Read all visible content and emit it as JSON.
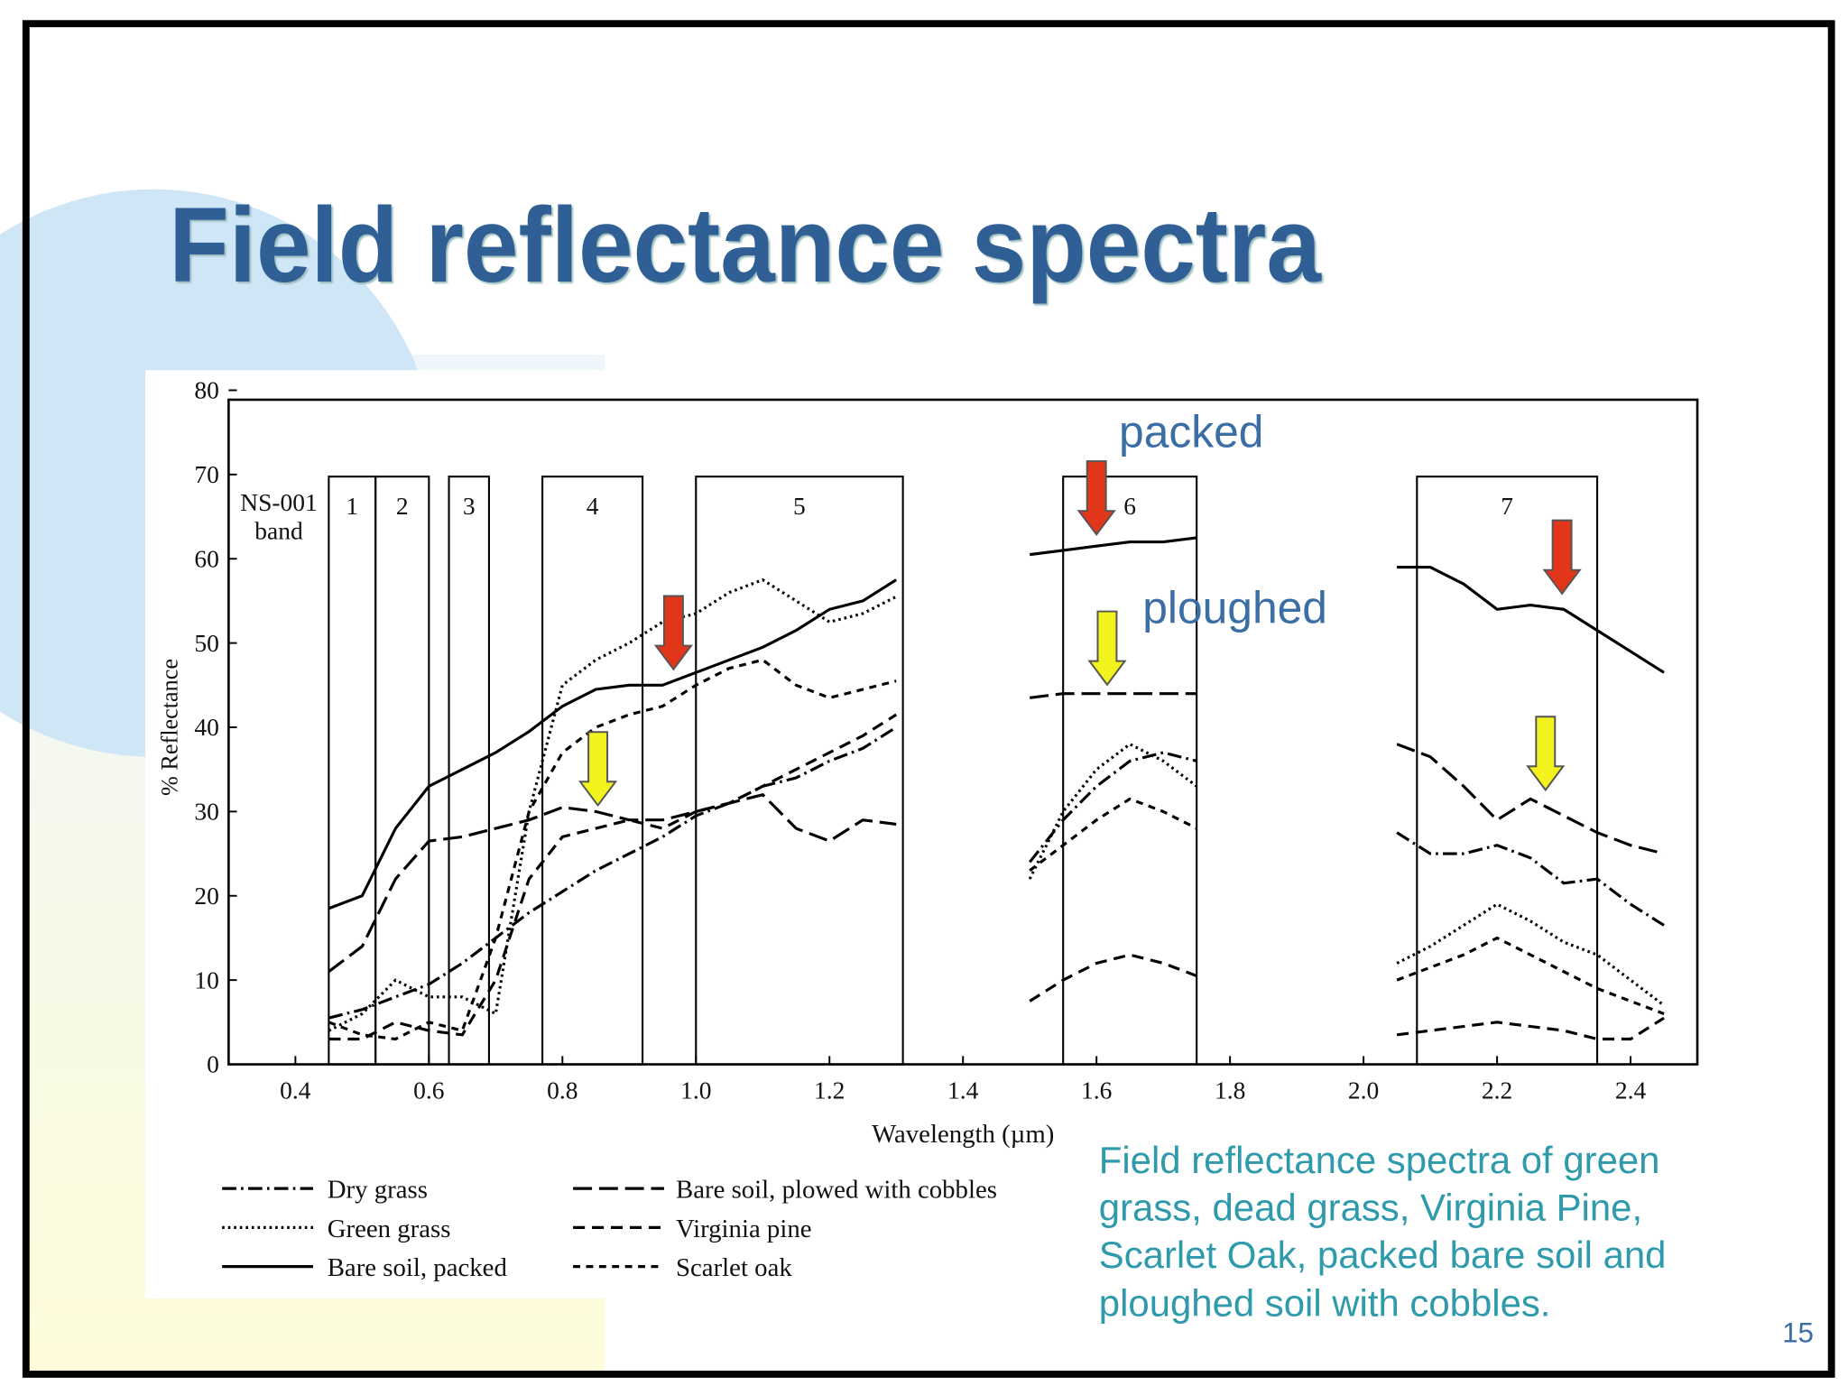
{
  "slide": {
    "title": "Field reflectance spectra",
    "caption": [
      "Field reflectance spectra of green",
      "grass, dead grass, Virginia Pine,",
      "Scarlet Oak, packed bare soil and",
      "ploughed soil with cobbles."
    ],
    "page_number": "15"
  },
  "chart_data": {
    "type": "line",
    "xlabel": "Wavelength (µm)",
    "ylabel": "% Reflectance",
    "xlim": [
      0.3,
      2.5
    ],
    "ylim": [
      0,
      80
    ],
    "xticks": [
      0.4,
      0.6,
      0.8,
      {
        "value": 1,
        "label": "1.0"
      },
      1.2,
      1.4,
      1.6,
      1.8,
      {
        "value": 2,
        "label": "2.0"
      },
      2.2,
      2.4
    ],
    "yticks": [
      0,
      10,
      20,
      30,
      40,
      50,
      60,
      70,
      80
    ],
    "band_label": [
      "NS-001",
      "band"
    ],
    "bands": [
      {
        "label": "1",
        "range": [
          0.45,
          0.52
        ]
      },
      {
        "label": "2",
        "range": [
          0.52,
          0.6
        ]
      },
      {
        "label": "3",
        "range": [
          0.63,
          0.69
        ]
      },
      {
        "label": "4",
        "range": [
          0.77,
          0.92
        ]
      },
      {
        "label": "5",
        "range": [
          1.0,
          1.31
        ]
      },
      {
        "label": "6",
        "range": [
          1.55,
          1.75
        ]
      },
      {
        "label": "7",
        "range": [
          2.08,
          2.35
        ]
      }
    ],
    "annotations": [
      "packed",
      "ploughed"
    ],
    "x": [
      0.45,
      0.5,
      0.55,
      0.6,
      0.65,
      0.7,
      0.75,
      0.8,
      0.85,
      0.9,
      0.95,
      1.0,
      1.05,
      1.1,
      1.15,
      1.2,
      1.25,
      1.3,
      1.4,
      1.5,
      1.55,
      1.6,
      1.65,
      1.7,
      1.75,
      1.9,
      2.05,
      2.1,
      2.15,
      2.2,
      2.25,
      2.3,
      2.35,
      2.4,
      2.45
    ],
    "series": [
      {
        "name": "Dry grass",
        "color": "#000000",
        "dash": "12,4,2,4",
        "values": [
          5.5,
          6.5,
          8,
          9.5,
          12,
          15,
          18,
          20.5,
          23,
          25,
          27,
          29.5,
          31,
          33,
          34,
          36,
          37.5,
          40,
          null,
          24,
          29,
          33,
          36,
          37,
          36,
          null,
          27.5,
          25,
          25,
          26,
          24.5,
          21.5,
          22,
          19,
          16.5
        ]
      },
      {
        "name": "Green grass",
        "color": "#000000",
        "dash": "2,3",
        "values": [
          4,
          6,
          10,
          8,
          8,
          6,
          30,
          45,
          48,
          50,
          52.5,
          53.5,
          56,
          57.5,
          55,
          52.5,
          53.5,
          55.5,
          null,
          22,
          30,
          35,
          38,
          36,
          33,
          null,
          12,
          14,
          16.5,
          19,
          17,
          14.5,
          13,
          10,
          7
        ]
      },
      {
        "name": "Bare soil, packed",
        "color": "#000000",
        "dash": "none",
        "values": [
          18.5,
          20,
          28,
          33,
          35,
          37,
          39.5,
          42.5,
          44.5,
          45,
          45,
          46.5,
          48,
          49.5,
          51.5,
          54,
          55,
          57.5,
          null,
          60.5,
          61,
          61.5,
          62,
          62,
          62.5,
          null,
          59,
          59,
          57,
          54,
          54.5,
          54,
          51.5,
          49,
          46.5
        ]
      },
      {
        "name": "Bare soil, plowed with cobbles",
        "color": "#000000",
        "dash": "16,6",
        "values": [
          11,
          14,
          22,
          26.5,
          27,
          28,
          29,
          30.5,
          30,
          29,
          29,
          30,
          31,
          32,
          28,
          26.5,
          29,
          28.5,
          null,
          43.5,
          44,
          44,
          44,
          44,
          44,
          null,
          38,
          36.5,
          33,
          29,
          31.5,
          29.5,
          27.5,
          26,
          25
        ]
      },
      {
        "name": "Virginia pine",
        "color": "#000000",
        "dash": "10,6",
        "values": [
          3,
          3,
          5,
          4,
          3.5,
          10,
          22,
          27,
          28,
          29,
          28,
          30,
          31,
          33,
          35,
          37,
          39,
          41.5,
          null,
          7.5,
          10,
          12,
          13,
          12,
          10.5,
          null,
          3.5,
          4,
          4.5,
          5,
          4.5,
          4,
          3,
          3,
          5.5
        ]
      },
      {
        "name": "Scarlet oak",
        "color": "#000000",
        "dash": "6,5",
        "values": [
          5,
          3.5,
          3,
          5,
          4,
          15,
          30,
          37,
          40,
          41.5,
          42.5,
          45,
          47,
          48,
          45,
          43.5,
          44.5,
          45.5,
          null,
          23,
          26,
          29,
          31.5,
          30,
          28,
          null,
          10,
          11.5,
          13,
          15,
          13,
          11,
          9,
          7.5,
          6
        ]
      }
    ]
  }
}
